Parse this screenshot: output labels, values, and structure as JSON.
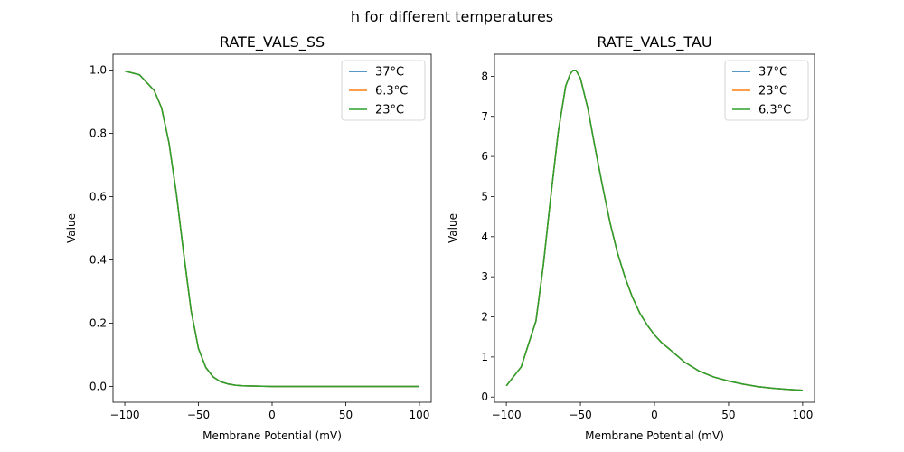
{
  "figure": {
    "title": "h for different temperatures"
  },
  "chart_data": [
    {
      "type": "line",
      "title": "RATE_VALS_SS",
      "xlabel": "Membrane Potential (mV)",
      "ylabel": "Value",
      "xlim": [
        -108,
        108
      ],
      "ylim": [
        -0.05,
        1.05
      ],
      "xticks": [
        -100,
        -50,
        0,
        50,
        100
      ],
      "xtick_labels": [
        "−100",
        "−50",
        "0",
        "50",
        "100"
      ],
      "yticks": [
        0.0,
        0.2,
        0.4,
        0.6,
        0.8,
        1.0
      ],
      "ytick_labels": [
        "0.0",
        "0.2",
        "0.4",
        "0.6",
        "0.8",
        "1.0"
      ],
      "grid": false,
      "legend_position": "top-right",
      "x": [
        -100,
        -90,
        -80,
        -75,
        -70,
        -65,
        -60,
        -55,
        -50,
        -45,
        -40,
        -35,
        -30,
        -25,
        -20,
        -10,
        0,
        10,
        20,
        40,
        60,
        80,
        100
      ],
      "series": [
        {
          "name": "37°C",
          "color": "#1f77b4",
          "values": [
            0.997,
            0.985,
            0.935,
            0.88,
            0.77,
            0.61,
            0.42,
            0.24,
            0.12,
            0.06,
            0.03,
            0.015,
            0.008,
            0.004,
            0.002,
            0.001,
            0.0,
            0.0,
            0.0,
            0.0,
            0.0,
            0.0,
            0.0
          ]
        },
        {
          "name": "6.3°C",
          "color": "#ff7f0e",
          "values": [
            0.997,
            0.985,
            0.935,
            0.88,
            0.77,
            0.61,
            0.42,
            0.24,
            0.12,
            0.06,
            0.03,
            0.015,
            0.008,
            0.004,
            0.002,
            0.001,
            0.0,
            0.0,
            0.0,
            0.0,
            0.0,
            0.0,
            0.0
          ]
        },
        {
          "name": "23°C",
          "color": "#2ca02c",
          "values": [
            0.997,
            0.985,
            0.935,
            0.88,
            0.77,
            0.61,
            0.42,
            0.24,
            0.12,
            0.06,
            0.03,
            0.015,
            0.008,
            0.004,
            0.002,
            0.001,
            0.0,
            0.0,
            0.0,
            0.0,
            0.0,
            0.0,
            0.0
          ]
        }
      ]
    },
    {
      "type": "line",
      "title": "RATE_VALS_TAU",
      "xlabel": "Membrane Potential (mV)",
      "ylabel": "Value",
      "xlim": [
        -108,
        108
      ],
      "ylim": [
        -0.13,
        8.55
      ],
      "xticks": [
        -100,
        -50,
        0,
        50,
        100
      ],
      "xtick_labels": [
        "−100",
        "−50",
        "0",
        "50",
        "100"
      ],
      "yticks": [
        0,
        1,
        2,
        3,
        4,
        5,
        6,
        7,
        8
      ],
      "ytick_labels": [
        "0",
        "1",
        "2",
        "3",
        "4",
        "5",
        "6",
        "7",
        "8"
      ],
      "grid": false,
      "legend_position": "top-right",
      "x": [
        -100,
        -90,
        -80,
        -75,
        -70,
        -65,
        -60,
        -57,
        -55,
        -53,
        -50,
        -45,
        -40,
        -35,
        -30,
        -25,
        -20,
        -15,
        -10,
        -5,
        0,
        5,
        10,
        20,
        30,
        40,
        50,
        60,
        70,
        80,
        90,
        100
      ],
      "series": [
        {
          "name": "37°C",
          "color": "#1f77b4",
          "values": [
            0.28,
            0.75,
            1.9,
            3.3,
            5.0,
            6.6,
            7.75,
            8.05,
            8.15,
            8.15,
            7.95,
            7.2,
            6.2,
            5.25,
            4.35,
            3.6,
            3.0,
            2.5,
            2.1,
            1.8,
            1.55,
            1.35,
            1.2,
            0.88,
            0.65,
            0.5,
            0.4,
            0.32,
            0.26,
            0.22,
            0.19,
            0.17
          ]
        },
        {
          "name": "23°C",
          "color": "#ff7f0e",
          "values": [
            0.28,
            0.75,
            1.9,
            3.3,
            5.0,
            6.6,
            7.75,
            8.05,
            8.15,
            8.15,
            7.95,
            7.2,
            6.2,
            5.25,
            4.35,
            3.6,
            3.0,
            2.5,
            2.1,
            1.8,
            1.55,
            1.35,
            1.2,
            0.88,
            0.65,
            0.5,
            0.4,
            0.32,
            0.26,
            0.22,
            0.19,
            0.17
          ]
        },
        {
          "name": "6.3°C",
          "color": "#2ca02c",
          "values": [
            0.28,
            0.75,
            1.9,
            3.3,
            5.0,
            6.6,
            7.75,
            8.05,
            8.15,
            8.15,
            7.95,
            7.2,
            6.2,
            5.25,
            4.35,
            3.6,
            3.0,
            2.5,
            2.1,
            1.8,
            1.55,
            1.35,
            1.2,
            0.88,
            0.65,
            0.5,
            0.4,
            0.32,
            0.26,
            0.22,
            0.19,
            0.17
          ]
        }
      ]
    }
  ]
}
